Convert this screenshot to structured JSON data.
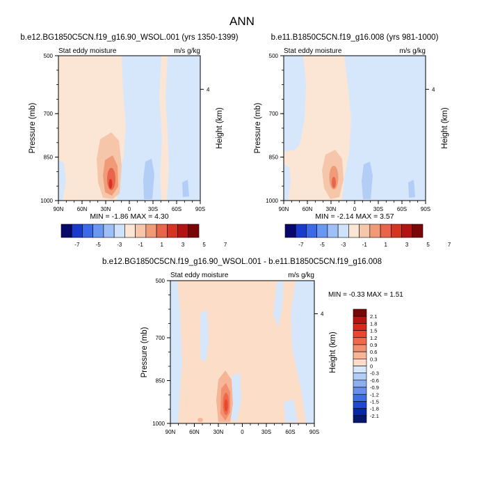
{
  "figure": {
    "title": "ANN",
    "background": "#ffffff"
  },
  "colormaps": {
    "top_levels": [
      "-7",
      "-5",
      "-3",
      "-1",
      "1",
      "3",
      "5",
      "7"
    ],
    "top_colors": [
      "#08086b",
      "#1a3acc",
      "#3a6ae8",
      "#6a98f0",
      "#9fc0f6",
      "#cfe2fb",
      "#fbe6d6",
      "#f6c6aa",
      "#f19a78",
      "#e8654b",
      "#d73323",
      "#b51313",
      "#7a0707"
    ],
    "diff_levels": [
      "2.1",
      "1.8",
      "1.5",
      "1.2",
      "0.9",
      "0.6",
      "0.3",
      "0",
      "-0.3",
      "-0.6",
      "-0.9",
      "-1.2",
      "-1.5",
      "-1.8",
      "-2.1"
    ],
    "diff_colors": [
      "#7a0707",
      "#b91414",
      "#d72a1a",
      "#e8482e",
      "#ef6a4c",
      "#f28f6e",
      "#f6b596",
      "#fbddc8",
      "#d6e7fb",
      "#b2cdf6",
      "#8daff0",
      "#6790ea",
      "#3f6ee3",
      "#1f49d1",
      "#0a25a8",
      "#061770"
    ]
  },
  "chart_data": [
    {
      "id": "panel-top-left",
      "type": "contour",
      "title": "b.e12.BG1850C5CN.f19_g16.90_WSOL.001 (yrs 1350-1399)",
      "subtitle_left": "Stat eddy moisture",
      "subtitle_right": "m/s g/kg",
      "ylabel": "Pressure (mb)",
      "ylabel_right": "Height (km)",
      "x_ticks": [
        "90N",
        "60N",
        "30N",
        "0",
        "30S",
        "60S",
        "90S"
      ],
      "y_ticks": [
        "500",
        "700",
        "850",
        "1000"
      ],
      "y_tick_values": [
        500,
        700,
        850,
        1000
      ],
      "right_ticks": [
        "4"
      ],
      "right_tick_pressure": 616,
      "xlim": [
        90,
        -90
      ],
      "ylim": [
        500,
        1000
      ],
      "min_label": "MIN = -1.86  MAX =  4.30",
      "min": -1.86,
      "max": 4.3,
      "colorbar": "top",
      "peak": {
        "lat": 23,
        "pressure": 915,
        "value": 4.3
      }
    },
    {
      "id": "panel-top-right",
      "type": "contour",
      "title": "b.e11.B1850C5CN.f19_g16.008 (yrs 981-1000)",
      "subtitle_left": "Stat eddy moisture",
      "subtitle_right": "m/s g/kg",
      "ylabel": "Pressure (mb)",
      "ylabel_right": "Height (km)",
      "x_ticks": [
        "90N",
        "60N",
        "30N",
        "0",
        "30S",
        "60S",
        "90S"
      ],
      "y_ticks": [
        "500",
        "700",
        "850",
        "1000"
      ],
      "y_tick_values": [
        500,
        700,
        850,
        1000
      ],
      "right_ticks": [
        "4"
      ],
      "right_tick_pressure": 616,
      "xlim": [
        90,
        -90
      ],
      "ylim": [
        500,
        1000
      ],
      "min_label": "MIN = -2.14  MAX =  3.57",
      "min": -2.14,
      "max": 3.57,
      "colorbar": "top",
      "peak": {
        "lat": 26,
        "pressure": 910,
        "value": 3.57
      }
    },
    {
      "id": "panel-difference",
      "type": "contour",
      "title": "b.e12.BG1850C5CN.f19_g16.90_WSOL.001 - b.e11.B1850C5CN.f19_g16.008",
      "subtitle_left": "Stat eddy moisture",
      "subtitle_right": "m/s g/kg",
      "ylabel": "Pressure (mb)",
      "ylabel_right": "Height (km)",
      "x_ticks": [
        "90N",
        "60N",
        "30N",
        "0",
        "30S",
        "60S",
        "90S"
      ],
      "y_ticks": [
        "500",
        "700",
        "850",
        "1000"
      ],
      "y_tick_values": [
        500,
        700,
        850,
        1000
      ],
      "right_ticks": [
        "4"
      ],
      "right_tick_pressure": 616,
      "xlim": [
        90,
        -90
      ],
      "ylim": [
        500,
        1000
      ],
      "min_label": "MIN = -0.33  MAX =   1.51",
      "min": -0.33,
      "max": 1.51,
      "colorbar": "diff",
      "peak": {
        "lat": 18,
        "pressure": 920,
        "value": 1.51
      }
    }
  ]
}
